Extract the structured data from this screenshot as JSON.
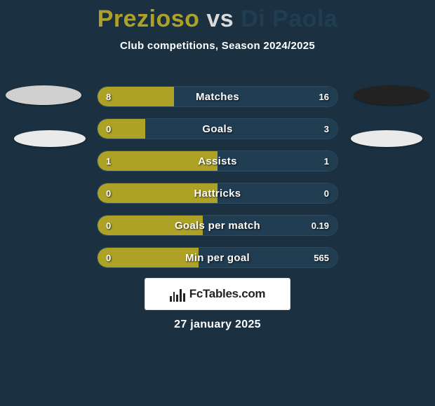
{
  "title": {
    "player1": "Prezioso",
    "vs": "vs",
    "player2": "Di Paola"
  },
  "subtitle": "Club competitions, Season 2024/2025",
  "colors": {
    "player1": "#aea226",
    "player2": "#213d52",
    "background": "#1b3141",
    "bar_background": "#15293a",
    "bar_border": "#2d4a5e",
    "text": "#ffffff"
  },
  "bars": [
    {
      "label": "Matches",
      "left_val": "8",
      "right_val": "16",
      "left_pct": 32,
      "right_pct": 68
    },
    {
      "label": "Goals",
      "left_val": "0",
      "right_val": "3",
      "left_pct": 20,
      "right_pct": 80
    },
    {
      "label": "Assists",
      "left_val": "1",
      "right_val": "1",
      "left_pct": 50,
      "right_pct": 50
    },
    {
      "label": "Hattricks",
      "left_val": "0",
      "right_val": "0",
      "left_pct": 50,
      "right_pct": 50
    },
    {
      "label": "Goals per match",
      "left_val": "0",
      "right_val": "0.19",
      "left_pct": 44,
      "right_pct": 56
    },
    {
      "label": "Min per goal",
      "left_val": "0",
      "right_val": "565",
      "left_pct": 42,
      "right_pct": 58
    }
  ],
  "bar_style": {
    "height": 30,
    "gap": 16,
    "border_radius": 15,
    "label_fontsize": 15,
    "value_fontsize": 13
  },
  "brand": "FcTables.com",
  "date": "27 january 2025"
}
